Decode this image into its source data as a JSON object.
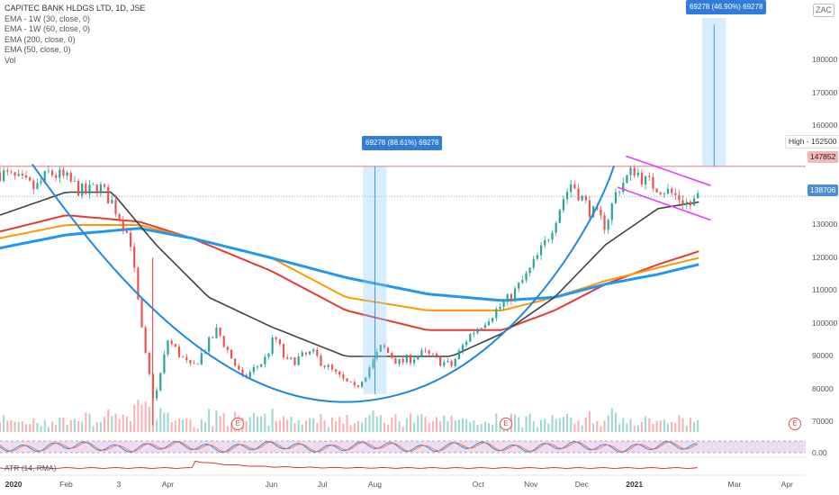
{
  "legend": {
    "title": "CAPITEC BANK HLDGS LTD, 1D, JSE",
    "lines": [
      "EMA - 1W (30, close, 0)",
      "EMA - 1W (60, close, 0)",
      "EMA (200, close, 0)",
      "EMA (50, close, 0)",
      "Vol"
    ]
  },
  "currency": "ZAC",
  "y_axis_ticks": [
    "180000",
    "170000",
    "160000",
    "150000",
    "140000",
    "130000",
    "120000",
    "110000",
    "100000",
    "90000",
    "80000",
    "70000"
  ],
  "x_axis_ticks": [
    {
      "label": "2020",
      "bold": true
    },
    {
      "label": "Feb",
      "bold": false
    },
    {
      "label": "3",
      "bold": false
    },
    {
      "label": "Apr",
      "bold": false
    },
    {
      "label": "Jun",
      "bold": false
    },
    {
      "label": "Jul",
      "bold": false
    },
    {
      "label": "Aug",
      "bold": false
    },
    {
      "label": "Oct",
      "bold": false
    },
    {
      "label": "Nov",
      "bold": false
    },
    {
      "label": "Dec",
      "bold": false
    },
    {
      "label": "2021",
      "bold": true
    },
    {
      "label": "Mar",
      "bold": false
    },
    {
      "label": "Apr",
      "bold": false
    }
  ],
  "price_tags": {
    "high_label": "High - 152500",
    "resistance": "147852",
    "last": "138706"
  },
  "callouts": {
    "left": "69278 (88.61%) 69278",
    "right": "69278 (46.90%) 69278"
  },
  "earnings_marker": "E",
  "oscillator_axis": "0.00",
  "atr_label": "ATR (14, RMA)",
  "colors": {
    "up": "#26a69a",
    "down": "#ef5350",
    "ema_1w_30": "#e53935",
    "ema_1w_60": "#ff9800",
    "ema_200": "#2196f3",
    "ema_50": "#424242",
    "cup_curve": "#1e88e5",
    "channel": "#e040fb",
    "resistance": "#ef9a9a"
  },
  "chart_data": {
    "type": "candlestick",
    "title": "CAPITEC BANK HLDGS LTD, 1D, JSE",
    "y_unit": "ZAC",
    "ylim": [
      67000,
      193000
    ],
    "x_range": [
      "2020-01-01",
      "2021-04-30"
    ],
    "resistance_level": 147852,
    "high": 152500,
    "last": 138706,
    "measured_move": 69278,
    "close_path": [
      [
        "2019-12-24",
        146000
      ],
      [
        "2020-01-06",
        143000
      ],
      [
        "2020-01-14",
        141000
      ],
      [
        "2020-01-22",
        146000
      ],
      [
        "2020-02-01",
        144000
      ],
      [
        "2020-02-12",
        139500
      ],
      [
        "2020-02-20",
        142000
      ],
      [
        "2020-02-28",
        137000
      ],
      [
        "2020-03-05",
        131000
      ],
      [
        "2020-03-10",
        125000
      ],
      [
        "2020-03-13",
        112000
      ],
      [
        "2020-03-18",
        92000
      ],
      [
        "2020-03-24",
        76000
      ],
      [
        "2020-04-01",
        95000
      ],
      [
        "2020-04-15",
        86000
      ],
      [
        "2020-04-30",
        98000
      ],
      [
        "2020-05-15",
        83000
      ],
      [
        "2020-05-28",
        89000
      ],
      [
        "2020-06-03",
        96000
      ],
      [
        "2020-06-10",
        88000
      ],
      [
        "2020-06-25",
        91000
      ],
      [
        "2020-07-10",
        84000
      ],
      [
        "2020-07-20",
        80000
      ],
      [
        "2020-07-28",
        86000
      ],
      [
        "2020-08-05",
        93000
      ],
      [
        "2020-08-15",
        88000
      ],
      [
        "2020-08-30",
        91000
      ],
      [
        "2020-09-15",
        87000
      ],
      [
        "2020-09-25",
        96000
      ],
      [
        "2020-10-05",
        101000
      ],
      [
        "2020-10-20",
        108000
      ],
      [
        "2020-10-30",
        115000
      ],
      [
        "2020-11-10",
        125000
      ],
      [
        "2020-11-20",
        138000
      ],
      [
        "2020-11-25",
        143000
      ],
      [
        "2020-12-05",
        135000
      ],
      [
        "2020-12-15",
        130000
      ],
      [
        "2020-12-22",
        141000
      ],
      [
        "2021-01-01",
        147000
      ],
      [
        "2021-01-08",
        143000
      ],
      [
        "2021-01-18",
        141000
      ],
      [
        "2021-01-28",
        138000
      ],
      [
        "2021-02-03",
        136000
      ],
      [
        "2021-02-08",
        138706
      ]
    ],
    "series": [
      {
        "name": "EMA - 1W (30, close, 0)",
        "values": [
          [
            "2019-12-24",
            128000
          ],
          [
            "2020-02-01",
            133000
          ],
          [
            "2020-03-15",
            131000
          ],
          [
            "2020-04-15",
            126000
          ],
          [
            "2020-06-01",
            116000
          ],
          [
            "2020-07-15",
            104000
          ],
          [
            "2020-09-01",
            98000
          ],
          [
            "2020-10-15",
            98000
          ],
          [
            "2020-11-15",
            104000
          ],
          [
            "2020-12-15",
            112000
          ],
          [
            "2021-01-15",
            118000
          ],
          [
            "2021-02-08",
            122000
          ]
        ]
      },
      {
        "name": "EMA - 1W (60, close, 0)",
        "values": [
          [
            "2019-12-24",
            126000
          ],
          [
            "2020-02-01",
            130000
          ],
          [
            "2020-03-15",
            130000
          ],
          [
            "2020-04-15",
            126000
          ],
          [
            "2020-06-01",
            120000
          ],
          [
            "2020-07-15",
            108000
          ],
          [
            "2020-09-01",
            104000
          ],
          [
            "2020-10-15",
            104000
          ],
          [
            "2020-11-15",
            108000
          ],
          [
            "2020-12-15",
            113000
          ],
          [
            "2021-01-15",
            117000
          ],
          [
            "2021-02-08",
            120000
          ]
        ]
      },
      {
        "name": "EMA (200, close, 0)",
        "values": [
          [
            "2019-12-24",
            123000
          ],
          [
            "2020-02-01",
            127000
          ],
          [
            "2020-03-15",
            129000
          ],
          [
            "2020-04-15",
            126000
          ],
          [
            "2020-06-01",
            120000
          ],
          [
            "2020-07-15",
            114000
          ],
          [
            "2020-09-01",
            109000
          ],
          [
            "2020-10-15",
            107000
          ],
          [
            "2020-11-15",
            108000
          ],
          [
            "2020-12-15",
            112000
          ],
          [
            "2021-01-15",
            115000
          ],
          [
            "2021-02-08",
            118000
          ]
        ]
      },
      {
        "name": "EMA (50, close, 0)",
        "values": [
          [
            "2019-12-24",
            133000
          ],
          [
            "2020-02-01",
            140000
          ],
          [
            "2020-02-28",
            140000
          ],
          [
            "2020-03-25",
            124000
          ],
          [
            "2020-04-25",
            108000
          ],
          [
            "2020-06-01",
            99000
          ],
          [
            "2020-07-15",
            90000
          ],
          [
            "2020-08-15",
            90000
          ],
          [
            "2020-09-15",
            90000
          ],
          [
            "2020-10-15",
            97000
          ],
          [
            "2020-11-15",
            108000
          ],
          [
            "2020-12-15",
            124000
          ],
          [
            "2021-01-15",
            135000
          ],
          [
            "2021-02-08",
            137000
          ]
        ]
      }
    ]
  }
}
